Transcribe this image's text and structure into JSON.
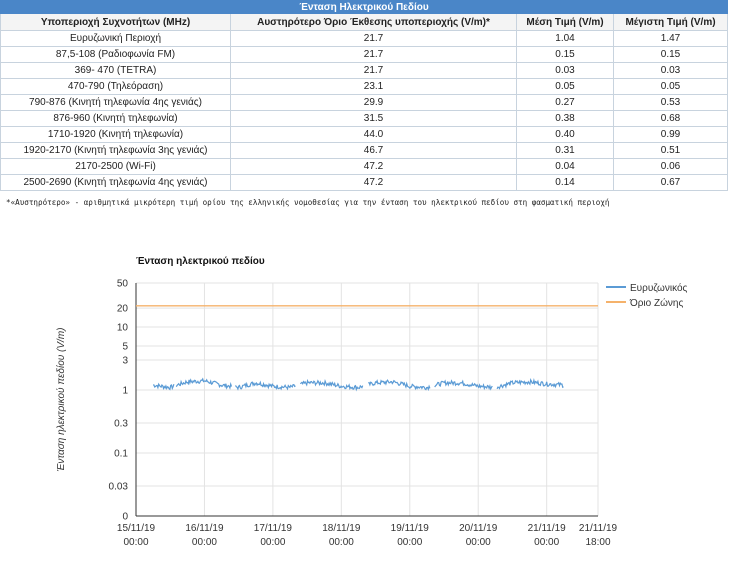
{
  "table": {
    "caption": "Ένταση Ηλεκτρικού Πεδίου",
    "columns": [
      "Υποπεριοχή Συχνοτήτων (MHz)",
      "Αυστηρότερο Όριο Έκθεσης υποπεριοχής (V/m)*",
      "Μέση Τιμή (V/m)",
      "Μέγιστη Τιμή (V/m)"
    ],
    "rows": [
      [
        "Ευρυζωνική Περιοχή",
        "21.7",
        "1.04",
        "1.47"
      ],
      [
        "87,5-108 (Ραδιοφωνία FM)",
        "21.7",
        "0.15",
        "0.15"
      ],
      [
        "369- 470 (TETRA)",
        "21.7",
        "0.03",
        "0.03"
      ],
      [
        "470-790 (Τηλεόραση)",
        "23.1",
        "0.05",
        "0.05"
      ],
      [
        "790-876 (Κινητή τηλεφωνία 4ης γενιάς)",
        "29.9",
        "0.27",
        "0.53"
      ],
      [
        "876-960 (Κινητή τηλεφωνία)",
        "31.5",
        "0.38",
        "0.68"
      ],
      [
        "1710-1920 (Κινητή τηλεφωνία)",
        "44.0",
        "0.40",
        "0.99"
      ],
      [
        "1920-2170 (Κινητή τηλεφωνία 3ης γενιάς)",
        "46.7",
        "0.31",
        "0.51"
      ],
      [
        "2170-2500 (Wi-Fi)",
        "47.2",
        "0.04",
        "0.06"
      ],
      [
        "2500-2690 (Κινητή τηλεφωνία 4ης γενιάς)",
        "47.2",
        "0.14",
        "0.67"
      ]
    ]
  },
  "footnote": "*«Αυστηρότερο» - αριθμητικά μικρότερη τιμή ορίου της ελληνικής νομοθεσίας για την ένταση του ηλεκτρικού πεδίου στη φασματική περιοχή",
  "colors": {
    "header_bar": "#4a86c8",
    "series_broadband": "#5b9bd5",
    "series_limit": "#f5b26b"
  },
  "chart_data": {
    "type": "line",
    "title": "Ένταση ηλεκτρικού πεδίου",
    "ylabel": "Ένταση ηλεκτρικού πεδίου (V/m)",
    "xlabel": "",
    "y_scale": "log",
    "ylim": [
      0,
      50
    ],
    "y_ticks": [
      "50",
      "20",
      "10",
      "5",
      "3",
      "1",
      "0.3",
      "0.1",
      "0.03",
      "0"
    ],
    "x_ticks": [
      {
        "date": "15/11/19",
        "time": "00:00"
      },
      {
        "date": "16/11/19",
        "time": "00:00"
      },
      {
        "date": "17/11/19",
        "time": "00:00"
      },
      {
        "date": "18/11/19",
        "time": "00:00"
      },
      {
        "date": "19/11/19",
        "time": "00:00"
      },
      {
        "date": "20/11/19",
        "time": "00:00"
      },
      {
        "date": "21/11/19",
        "time": "00:00"
      },
      {
        "date": "21/11/19",
        "time": "18:00"
      }
    ],
    "grid": true,
    "legend_position": "right",
    "series": [
      {
        "name": "Ευρυζωνικός",
        "x": [
          "15/11/19 06:00",
          "15/11/19 12:00",
          "15/11/19 18:00",
          "16/11/19 00:00",
          "16/11/19 06:00",
          "16/11/19 12:00",
          "16/11/19 18:00",
          "17/11/19 00:00",
          "17/11/19 06:00",
          "17/11/19 12:00",
          "17/11/19 18:00",
          "18/11/19 00:00",
          "18/11/19 06:00",
          "18/11/19 12:00",
          "18/11/19 18:00",
          "19/11/19 00:00",
          "19/11/19 06:00",
          "19/11/19 12:00",
          "19/11/19 18:00",
          "20/11/19 00:00",
          "20/11/19 06:00",
          "20/11/19 12:00",
          "20/11/19 18:00",
          "21/11/19 00:00",
          "21/11/19 06:00"
        ],
        "values": [
          1.2,
          1.1,
          1.35,
          1.4,
          1.2,
          1.1,
          1.3,
          1.15,
          1.1,
          1.3,
          1.3,
          1.15,
          1.1,
          1.3,
          1.35,
          1.15,
          1.1,
          1.3,
          1.3,
          1.15,
          1.1,
          1.3,
          1.35,
          1.25,
          1.2
        ]
      },
      {
        "name": "Όριο Ζώνης",
        "x": [
          "15/11/19 00:00",
          "21/11/19 18:00"
        ],
        "values": [
          21.7,
          21.7
        ]
      }
    ]
  }
}
